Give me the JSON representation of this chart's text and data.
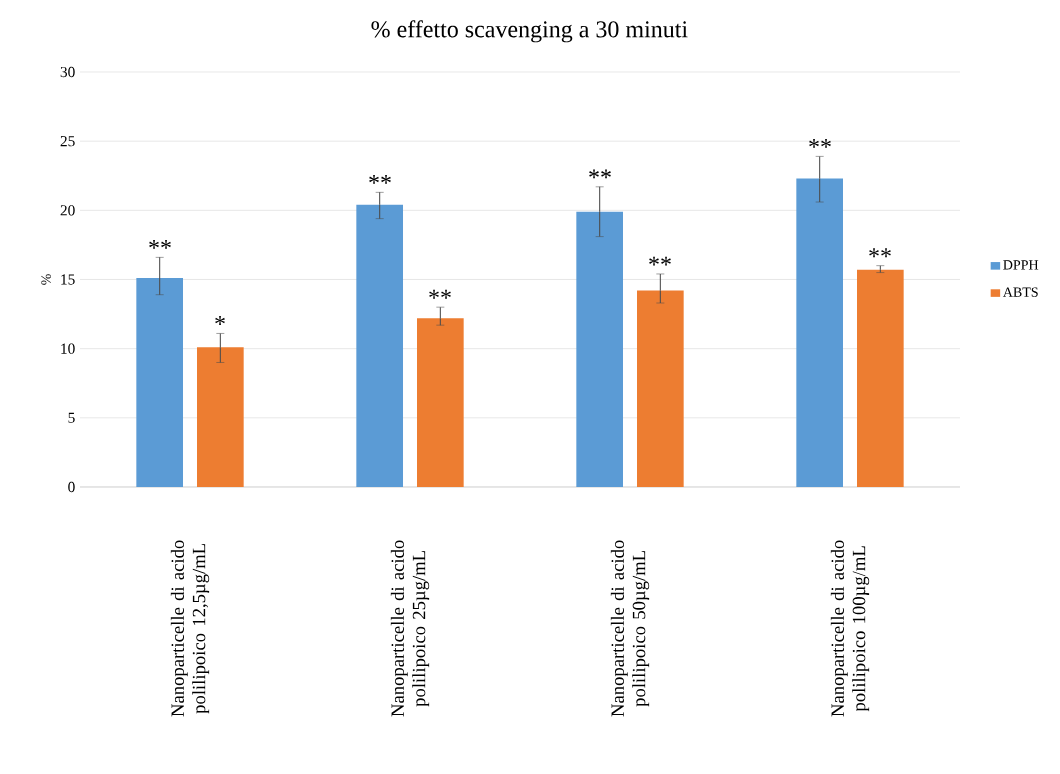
{
  "chart_data": {
    "type": "bar",
    "title": "% effetto scavenging  a 30 minuti",
    "ylabel": "%",
    "categories": [
      "Nanoparticelle di acido polilipoico 12,5µg/mL",
      "Nanoparticelle di acido polilipoico 25µg/mL",
      "Nanoparticelle di acido polilipoico 50µg/mL",
      "Nanoparticelle di acido polilipoico 100µg/mL"
    ],
    "series": [
      {
        "name": "DPPH",
        "color": "#5b9bd5",
        "values": [
          15.1,
          20.4,
          19.9,
          22.3
        ],
        "errors": [
          [
            13.9,
            16.6
          ],
          [
            19.4,
            21.3
          ],
          [
            18.1,
            21.7
          ],
          [
            20.6,
            23.9
          ]
        ]
      },
      {
        "name": "ABTS",
        "color": "#ed7d31",
        "values": [
          10.1,
          12.2,
          14.2,
          15.7
        ],
        "errors": [
          [
            9.0,
            11.1
          ],
          [
            11.7,
            13.0
          ],
          [
            13.3,
            15.4
          ],
          [
            15.5,
            16.0
          ]
        ]
      }
    ],
    "ylim": [
      0,
      30
    ],
    "yticks": [
      0,
      5,
      10,
      15,
      20,
      25,
      30
    ],
    "grid": "y",
    "legend": "right",
    "annotations": [
      "**",
      "*",
      "**",
      "**",
      "**",
      "**",
      "**",
      "**"
    ]
  }
}
